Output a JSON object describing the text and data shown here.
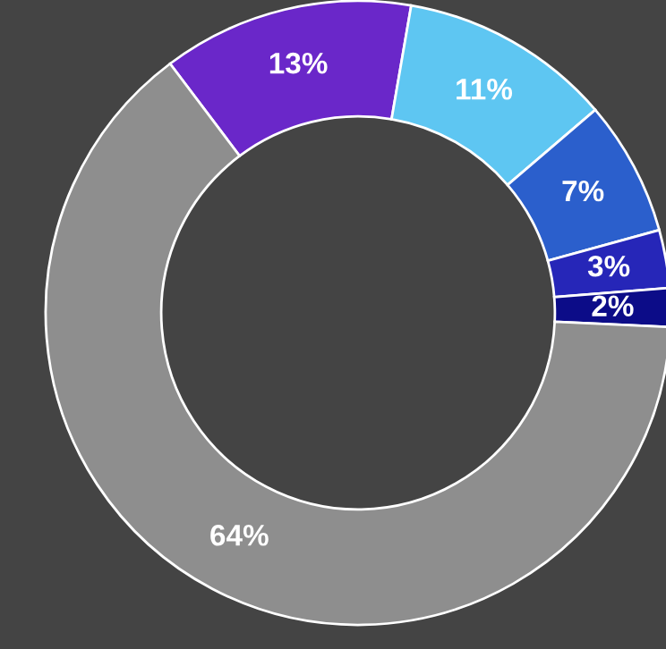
{
  "chart_data": {
    "type": "donut",
    "categories": [
      null,
      null,
      null,
      null,
      null,
      null
    ],
    "values": [
      13,
      11,
      7,
      3,
      2,
      64
    ],
    "colors": [
      "#6a27c9",
      "#5ec6f2",
      "#2b5fcc",
      "#2626b8",
      "#0c0c88",
      "#8e8e8e"
    ],
    "value_labels": [
      "13%",
      "11%",
      "7%",
      "3%",
      "2%",
      "64%"
    ]
  }
}
